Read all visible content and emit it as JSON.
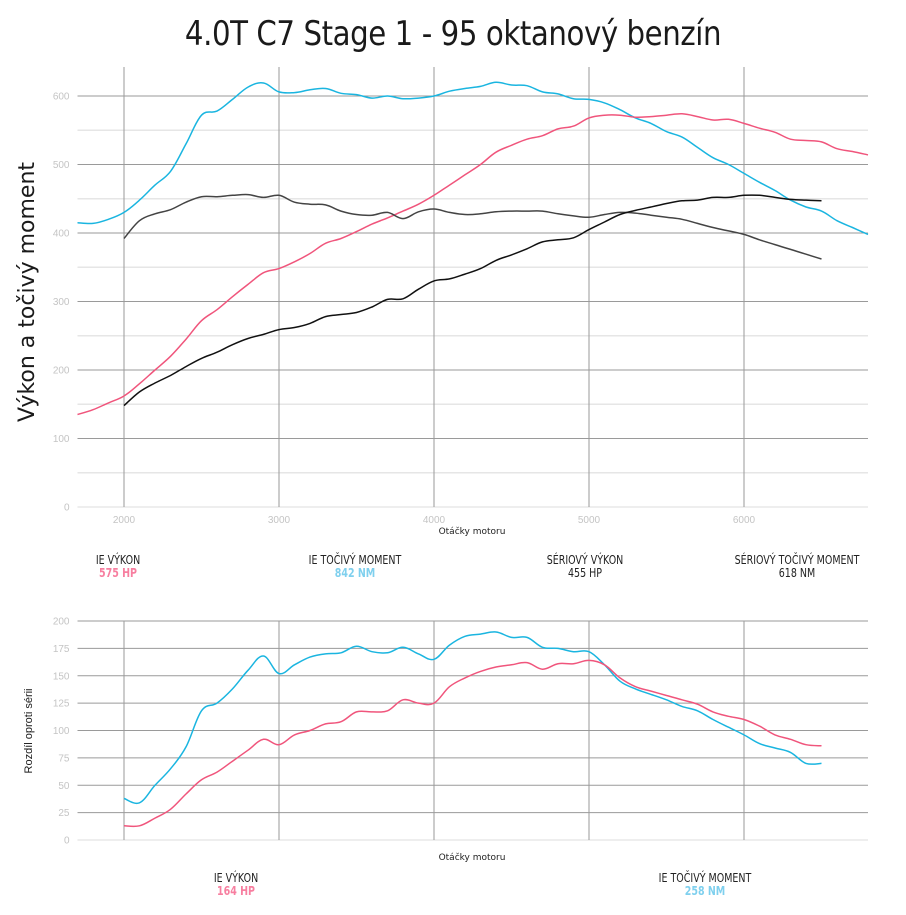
{
  "title": "4.0T C7 Stage 1 - 95 oktanový benzín",
  "colors": {
    "ie_power": "#f0557c",
    "ie_torque": "#1ab5e0",
    "stock_power": "#111111",
    "stock_torque": "#444444",
    "legend_power": "#f77fa0",
    "legend_torque": "#7fd0ee"
  },
  "chart_data": [
    {
      "type": "line",
      "title": "4.0T C7 Stage 1 - 95 oktanový benzín",
      "xlabel": "Otáčky motoru",
      "ylabel": "Výkon a točivý moment",
      "xlim": [
        1700,
        6800
      ],
      "ylim": [
        0,
        650
      ],
      "xticks": [
        2000,
        3000,
        4000,
        5000,
        6000
      ],
      "yticks": [
        0,
        100,
        200,
        300,
        400,
        500,
        600
      ],
      "grid": true,
      "series": [
        {
          "name": "IE točivý moment",
          "color": "#1ab5e0",
          "x": [
            1700,
            1800,
            1900,
            2000,
            2100,
            2200,
            2300,
            2400,
            2500,
            2600,
            2700,
            2800,
            2900,
            3000,
            3100,
            3200,
            3300,
            3400,
            3500,
            3600,
            3700,
            3800,
            3900,
            4000,
            4100,
            4200,
            4300,
            4400,
            4500,
            4600,
            4700,
            4800,
            4900,
            5000,
            5100,
            5200,
            5300,
            5400,
            5500,
            5600,
            5700,
            5800,
            5900,
            6000,
            6100,
            6200,
            6300,
            6400,
            6500,
            6600,
            6700,
            6800
          ],
          "y": [
            415,
            414,
            420,
            430,
            448,
            470,
            490,
            530,
            572,
            578,
            595,
            613,
            619,
            606,
            605,
            609,
            611,
            604,
            602,
            597,
            600,
            596,
            597,
            600,
            607,
            611,
            614,
            620,
            616,
            615,
            606,
            603,
            596,
            595,
            590,
            580,
            568,
            560,
            548,
            540,
            525,
            510,
            500,
            487,
            474,
            462,
            448,
            438,
            432,
            418,
            408,
            398
          ]
        },
        {
          "name": "IE výkon",
          "color": "#f0557c",
          "x": [
            1700,
            1800,
            1900,
            2000,
            2100,
            2200,
            2300,
            2400,
            2500,
            2600,
            2700,
            2800,
            2900,
            3000,
            3100,
            3200,
            3300,
            3400,
            3500,
            3600,
            3700,
            3800,
            3900,
            4000,
            4100,
            4200,
            4300,
            4400,
            4500,
            4600,
            4700,
            4800,
            4900,
            5000,
            5100,
            5200,
            5300,
            5400,
            5500,
            5600,
            5700,
            5800,
            5900,
            6000,
            6100,
            6200,
            6300,
            6400,
            6500,
            6600,
            6700,
            6800
          ],
          "y": [
            135,
            142,
            152,
            162,
            180,
            200,
            220,
            245,
            272,
            288,
            307,
            325,
            342,
            348,
            358,
            370,
            385,
            392,
            402,
            413,
            422,
            432,
            442,
            455,
            470,
            485,
            500,
            518,
            528,
            537,
            542,
            552,
            556,
            568,
            572,
            572,
            569,
            570,
            572,
            574,
            570,
            565,
            566,
            560,
            553,
            547,
            537,
            535,
            533,
            523,
            519,
            514
          ]
        },
        {
          "name": "Sériový točivý moment",
          "color": "#444444",
          "x": [
            2000,
            2100,
            2200,
            2300,
            2400,
            2500,
            2600,
            2700,
            2800,
            2900,
            3000,
            3100,
            3200,
            3300,
            3400,
            3500,
            3600,
            3700,
            3800,
            3900,
            4000,
            4100,
            4200,
            4300,
            4400,
            4500,
            4600,
            4700,
            4800,
            4900,
            5000,
            5100,
            5200,
            5300,
            5400,
            5500,
            5600,
            5700,
            5800,
            5900,
            6000,
            6100,
            6200,
            6300,
            6400,
            6500
          ],
          "y": [
            392,
            418,
            428,
            434,
            445,
            453,
            453,
            455,
            456,
            452,
            455,
            445,
            442,
            441,
            432,
            427,
            426,
            430,
            421,
            431,
            435,
            430,
            427,
            428,
            431,
            432,
            432,
            432,
            428,
            425,
            423,
            427,
            430,
            429,
            426,
            423,
            420,
            414,
            408,
            403,
            398,
            390,
            383,
            376,
            369,
            362
          ]
        },
        {
          "name": "Sériový výkon",
          "color": "#111111",
          "x": [
            2000,
            2100,
            2200,
            2300,
            2400,
            2500,
            2600,
            2700,
            2800,
            2900,
            3000,
            3100,
            3200,
            3300,
            3400,
            3500,
            3600,
            3700,
            3800,
            3900,
            4000,
            4100,
            4200,
            4300,
            4400,
            4500,
            4600,
            4700,
            4800,
            4900,
            5000,
            5100,
            5200,
            5300,
            5400,
            5500,
            5600,
            5700,
            5800,
            5900,
            6000,
            6100,
            6200,
            6300,
            6400,
            6500
          ],
          "y": [
            148,
            168,
            181,
            192,
            205,
            217,
            226,
            237,
            246,
            252,
            259,
            262,
            268,
            278,
            281,
            284,
            292,
            303,
            304,
            318,
            330,
            333,
            340,
            348,
            360,
            368,
            377,
            387,
            390,
            393,
            405,
            416,
            427,
            433,
            438,
            443,
            447,
            448,
            452,
            452,
            455,
            455,
            452,
            449,
            448,
            447
          ]
        }
      ],
      "legend": [
        {
          "label": "IE VÝKON",
          "value": "575 HP",
          "color": "#f77fa0"
        },
        {
          "label": "IE TOČIVÝ MOMENT",
          "value": "842 NM",
          "color": "#7fd0ee"
        },
        {
          "label": "SÉRIOVÝ VÝKON",
          "value": "455 HP",
          "color": "#222222"
        },
        {
          "label": "SÉRIOVÝ TOČIVÝ MOMENT",
          "value": "618 NM",
          "color": "#222222"
        }
      ]
    },
    {
      "type": "line",
      "title": "",
      "xlabel": "Otáčky motoru",
      "ylabel": "Rozdíl oproti sérii",
      "xlim": [
        1700,
        6800
      ],
      "ylim": [
        0,
        200
      ],
      "xticks": [
        2000,
        3000,
        4000,
        5000,
        6000
      ],
      "yticks": [
        0,
        25,
        50,
        75,
        100,
        125,
        150,
        175,
        200
      ],
      "grid": true,
      "series": [
        {
          "name": "IE točivý moment rozdíl",
          "color": "#1ab5e0",
          "x": [
            2000,
            2100,
            2200,
            2300,
            2400,
            2500,
            2600,
            2700,
            2800,
            2900,
            3000,
            3100,
            3200,
            3300,
            3400,
            3500,
            3600,
            3700,
            3800,
            3900,
            4000,
            4100,
            4200,
            4300,
            4400,
            4500,
            4600,
            4700,
            4800,
            4900,
            5000,
            5100,
            5200,
            5300,
            5400,
            5500,
            5600,
            5700,
            5800,
            5900,
            6000,
            6100,
            6200,
            6300,
            6400,
            6500
          ],
          "y": [
            38,
            34,
            50,
            65,
            85,
            118,
            125,
            138,
            155,
            168,
            152,
            160,
            167,
            170,
            171,
            177,
            172,
            171,
            176,
            170,
            165,
            178,
            186,
            188,
            190,
            185,
            185,
            176,
            175,
            172,
            172,
            160,
            145,
            138,
            133,
            128,
            122,
            118,
            110,
            103,
            96,
            88,
            84,
            80,
            70,
            70
          ]
        },
        {
          "name": "IE výkon rozdíl",
          "color": "#f0557c",
          "x": [
            2000,
            2100,
            2200,
            2300,
            2400,
            2500,
            2600,
            2700,
            2800,
            2900,
            3000,
            3100,
            3200,
            3300,
            3400,
            3500,
            3600,
            3700,
            3800,
            3900,
            4000,
            4100,
            4200,
            4300,
            4400,
            4500,
            4600,
            4700,
            4800,
            4900,
            5000,
            5100,
            5200,
            5300,
            5400,
            5500,
            5600,
            5700,
            5800,
            5900,
            6000,
            6100,
            6200,
            6300,
            6400,
            6500
          ],
          "y": [
            13,
            13,
            20,
            28,
            42,
            55,
            62,
            72,
            82,
            92,
            87,
            96,
            100,
            106,
            108,
            117,
            117,
            118,
            128,
            125,
            125,
            140,
            148,
            154,
            158,
            160,
            162,
            156,
            161,
            161,
            164,
            160,
            148,
            140,
            136,
            132,
            128,
            124,
            117,
            113,
            110,
            104,
            96,
            92,
            87,
            86
          ]
        }
      ],
      "legend": [
        {
          "label": "IE VÝKON",
          "value": "164 HP",
          "color": "#f77fa0"
        },
        {
          "label": "IE TOČIVÝ MOMENT",
          "value": "258 NM",
          "color": "#7fd0ee"
        }
      ]
    }
  ]
}
